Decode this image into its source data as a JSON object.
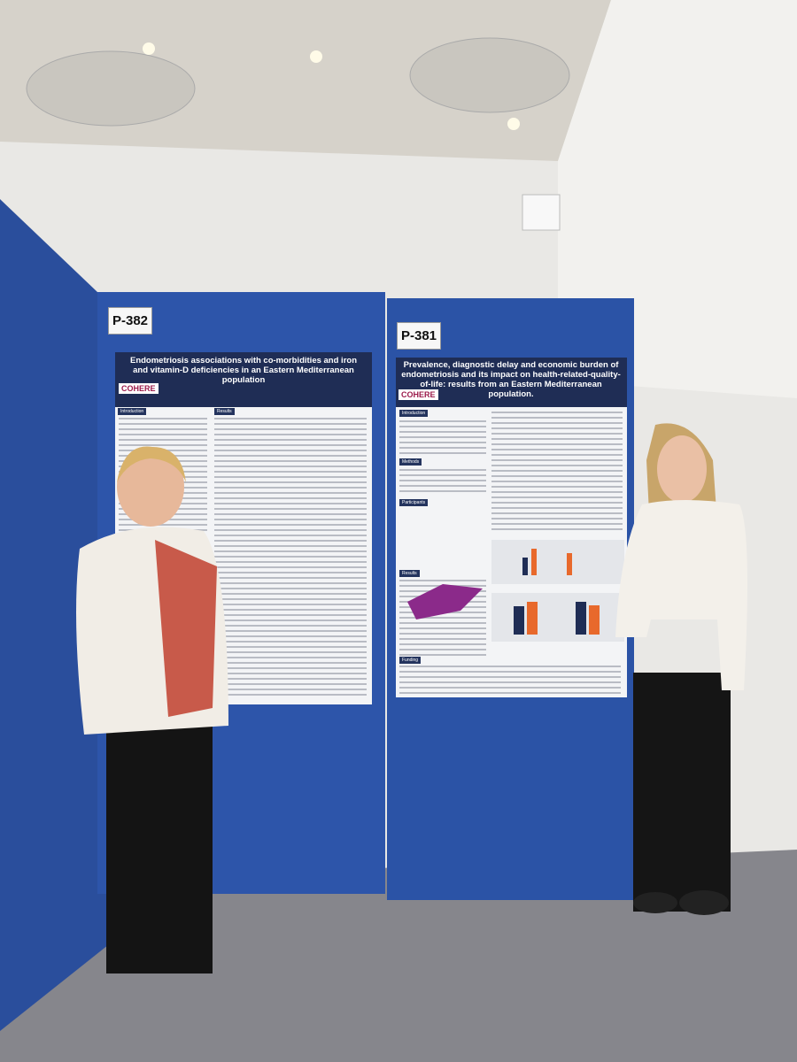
{
  "boards": [
    {
      "label": "P-382",
      "poster": {
        "title": "Endometriosis associations with co-morbidities and iron and vitamin-D deficiencies in an Eastern Mediterranean population",
        "logo": "COHERE",
        "sections": [
          "Introduction",
          "Results"
        ]
      }
    },
    {
      "label": "P-381",
      "poster": {
        "title": "Prevalence, diagnostic delay and economic burden of endometriosis and its impact on health-related-quality-of-life: results from an Eastern Mediterranean population.",
        "logo": "COHERE",
        "sections": [
          "Introduction",
          "Methods",
          "Participants",
          "Results",
          "Funding"
        ]
      }
    }
  ]
}
